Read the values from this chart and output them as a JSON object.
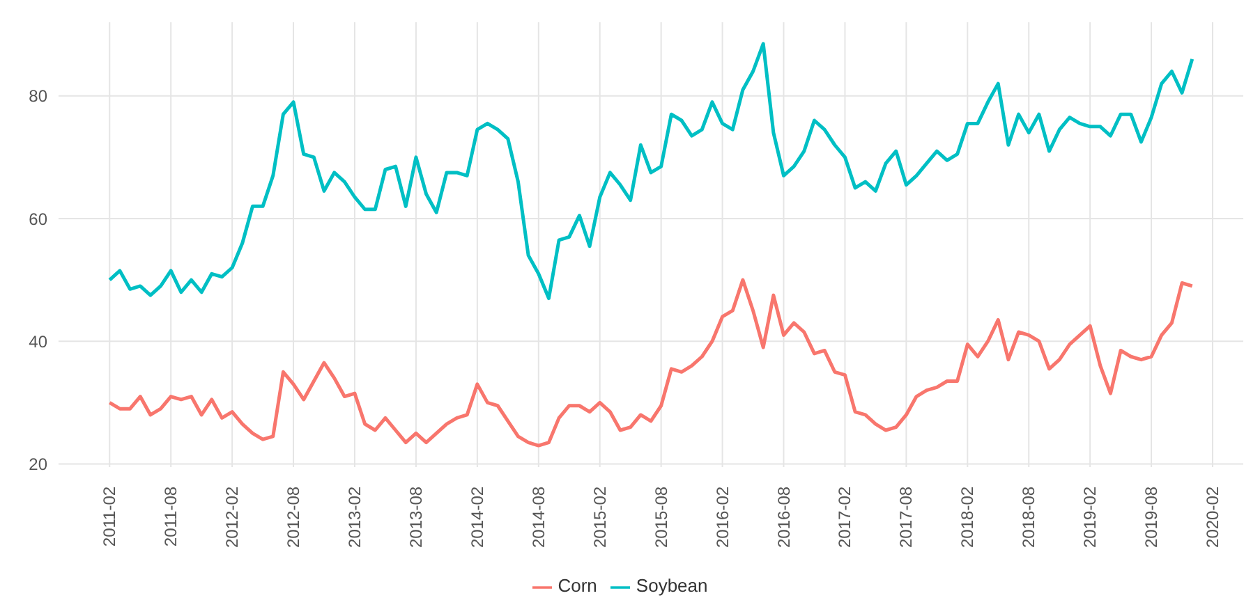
{
  "chart_data": {
    "type": "line",
    "x": [
      "2011-02",
      "2011-03",
      "2011-04",
      "2011-05",
      "2011-06",
      "2011-07",
      "2011-08",
      "2011-09",
      "2011-10",
      "2011-11",
      "2011-12",
      "2012-01",
      "2012-02",
      "2012-03",
      "2012-04",
      "2012-05",
      "2012-06",
      "2012-07",
      "2012-08",
      "2012-09",
      "2012-10",
      "2012-11",
      "2012-12",
      "2013-01",
      "2013-02",
      "2013-03",
      "2013-04",
      "2013-05",
      "2013-06",
      "2013-07",
      "2013-08",
      "2013-09",
      "2013-10",
      "2013-11",
      "2013-12",
      "2014-01",
      "2014-02",
      "2014-03",
      "2014-04",
      "2014-05",
      "2014-06",
      "2014-07",
      "2014-08",
      "2014-09",
      "2014-10",
      "2014-11",
      "2014-12",
      "2015-01",
      "2015-02",
      "2015-03",
      "2015-04",
      "2015-05",
      "2015-06",
      "2015-07",
      "2015-08",
      "2015-09",
      "2015-10",
      "2015-11",
      "2015-12",
      "2016-01",
      "2016-02",
      "2016-03",
      "2016-04",
      "2016-05",
      "2016-06",
      "2016-07",
      "2016-08",
      "2016-09",
      "2016-10",
      "2016-11",
      "2016-12",
      "2017-01",
      "2017-02",
      "2017-03",
      "2017-04",
      "2017-05",
      "2017-06",
      "2017-07",
      "2017-08",
      "2017-09",
      "2017-10",
      "2017-11",
      "2017-12",
      "2018-01",
      "2018-02",
      "2018-03",
      "2018-04",
      "2018-05",
      "2018-06",
      "2018-07",
      "2018-08",
      "2018-09",
      "2018-10",
      "2018-11",
      "2018-12",
      "2019-01",
      "2019-02",
      "2019-03",
      "2019-04",
      "2019-05",
      "2019-06",
      "2019-07",
      "2019-08",
      "2019-09",
      "2019-10",
      "2019-11",
      "2019-12"
    ],
    "series": [
      {
        "name": "Corn",
        "color": "#f8766d",
        "values": [
          30,
          29,
          29,
          31,
          28,
          29,
          31,
          30.5,
          31,
          28,
          30.5,
          27.5,
          28.5,
          26.5,
          25,
          24,
          24.5,
          35,
          33,
          30.5,
          33.5,
          36.5,
          34,
          31,
          31.5,
          26.5,
          25.5,
          27.5,
          25.5,
          23.5,
          25,
          23.5,
          25,
          26.5,
          27.5,
          28,
          33,
          30,
          29.5,
          27,
          24.5,
          23.5,
          23,
          23.5,
          27.5,
          29.5,
          29.5,
          28.5,
          30,
          28.5,
          25.5,
          26,
          28,
          27,
          29.5,
          35.5,
          35,
          36,
          37.5,
          40,
          44,
          45,
          50,
          45,
          39,
          47.5,
          41,
          43,
          41.5,
          38,
          38.5,
          35,
          34.5,
          28.5,
          28,
          26.5,
          25.5,
          26,
          28,
          31,
          32,
          32.5,
          33.5,
          33.5,
          39.5,
          37.5,
          40,
          43.5,
          37,
          41.5,
          41,
          40,
          35.5,
          37,
          39.5,
          41,
          42.5,
          36,
          31.5,
          38.5,
          37.5,
          37,
          37.5,
          41,
          43,
          49.5,
          49
        ]
      },
      {
        "name": "Soybean",
        "color": "#00bfc4",
        "values": [
          50,
          51.5,
          48.5,
          49,
          47.5,
          49,
          51.5,
          48,
          50,
          48,
          51,
          50.5,
          52,
          56,
          62,
          62,
          67,
          77,
          79,
          70.5,
          70,
          64.5,
          67.5,
          66,
          63.5,
          61.5,
          61.5,
          68,
          68.5,
          62,
          70,
          64,
          61,
          67.5,
          67.5,
          67,
          74.5,
          75.5,
          74.5,
          73,
          66,
          54,
          51,
          47,
          56.5,
          57,
          60.5,
          55.5,
          63.5,
          67.5,
          65.5,
          63,
          72,
          67.5,
          68.5,
          77,
          76,
          73.5,
          74.5,
          79,
          75.5,
          74.5,
          81,
          84,
          88.5,
          74,
          67,
          68.5,
          71,
          76,
          74.5,
          72,
          70,
          65,
          66,
          64.5,
          69,
          71,
          65.5,
          67,
          69,
          71,
          69.5,
          70.5,
          75.5,
          75.5,
          79,
          82,
          72,
          77,
          74,
          77,
          71,
          74.5,
          76.5,
          75.5,
          75,
          75,
          73.5,
          77,
          77,
          72.5,
          76.5,
          82,
          84,
          80.5,
          86
        ]
      }
    ],
    "xlim": [
      "2010-09",
      "2020-05"
    ],
    "xticks": [
      "2011-02",
      "2011-08",
      "2012-02",
      "2012-08",
      "2013-02",
      "2013-08",
      "2014-02",
      "2014-08",
      "2015-02",
      "2015-08",
      "2016-02",
      "2016-08",
      "2017-02",
      "2017-08",
      "2018-02",
      "2018-08",
      "2019-02",
      "2019-08",
      "2020-02"
    ],
    "ylim": [
      19.5,
      92
    ],
    "yticks": [
      20,
      40,
      60,
      80
    ],
    "grid": true,
    "legend": "bottom",
    "marker": "none",
    "line_style": "solid"
  }
}
